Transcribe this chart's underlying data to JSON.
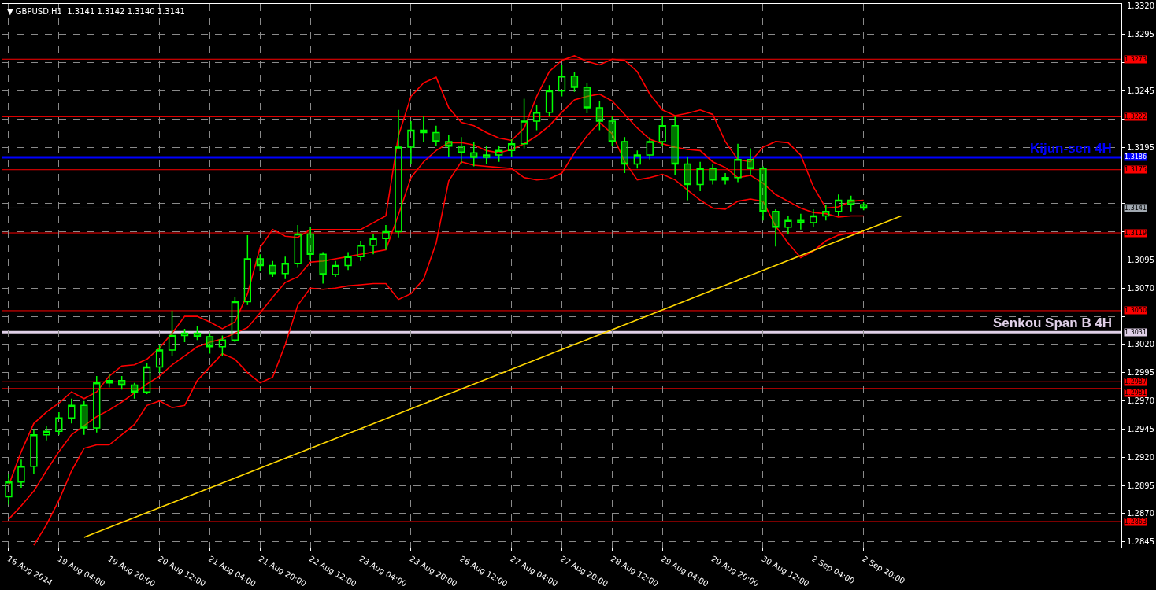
{
  "chart_data": {
    "type": "candlestick",
    "title": "▼ GBPUSD,H1  1.3141 1.3142 1.3140 1.3141",
    "categories": [
      "16 Aug 2024",
      null,
      null,
      null,
      "19 Aug 04:00",
      null,
      null,
      null,
      "19 Aug 20:00",
      null,
      null,
      null,
      "20 Aug 12:00",
      null,
      null,
      null,
      "21 Aug 04:00",
      null,
      null,
      null,
      "21 Aug 20:00",
      null,
      null,
      null,
      "22 Aug 12:00",
      null,
      null,
      null,
      "23 Aug 04:00",
      null,
      null,
      null,
      "23 Aug 20:00",
      null,
      null,
      null,
      "26 Aug 12:00",
      null,
      null,
      null,
      "27 Aug 04:00",
      null,
      null,
      null,
      "27 Aug 20:00",
      null,
      null,
      null,
      "28 Aug 12:00",
      null,
      null,
      null,
      "29 Aug 04:00",
      null,
      null,
      null,
      "29 Aug 20:00",
      null,
      null,
      null,
      "30 Aug 12:00",
      null,
      null,
      null,
      "2 Sep 04:00",
      null,
      null,
      null,
      "2 Sep 20:00",
      null,
      null,
      null,
      null,
      null,
      null,
      null,
      null,
      null,
      null,
      null,
      null,
      null,
      null,
      null,
      null,
      null,
      null,
      null,
      null
    ],
    "series": [
      {
        "color": "#00ff00",
        "ohlc": [
          [
            1.2885,
            1.2905,
            1.2878,
            1.2898
          ],
          [
            1.2898,
            1.2918,
            1.2893,
            1.2912
          ],
          [
            1.2912,
            1.2945,
            1.2905,
            1.294
          ],
          [
            1.294,
            1.2948,
            1.2935,
            1.2943
          ],
          [
            1.2943,
            1.296,
            1.294,
            1.2955
          ],
          [
            1.2955,
            1.2972,
            1.295,
            1.2966
          ],
          [
            1.2966,
            1.297,
            1.294,
            1.2946
          ],
          [
            1.2946,
            1.2992,
            1.2942,
            1.2986
          ],
          [
            1.2986,
            1.2994,
            1.2982,
            1.2988
          ],
          [
            1.2988,
            1.2992,
            1.298,
            1.2984
          ],
          [
            1.2984,
            1.2986,
            1.2972,
            1.2978
          ],
          [
            1.2978,
            1.3004,
            1.2976,
            1.3
          ],
          [
            1.3,
            1.302,
            1.2995,
            1.3015
          ],
          [
            1.3015,
            1.305,
            1.301,
            1.3028
          ],
          [
            1.3028,
            1.3034,
            1.3022,
            1.303
          ],
          [
            1.303,
            1.3036,
            1.3024,
            1.3027
          ],
          [
            1.3027,
            1.303,
            1.3012,
            1.3018
          ],
          [
            1.3018,
            1.3028,
            1.301,
            1.3024
          ],
          [
            1.3024,
            1.3062,
            1.3022,
            1.3058
          ],
          [
            1.3058,
            1.3117,
            1.3055,
            1.3096
          ],
          [
            1.3096,
            1.31,
            1.3085,
            1.309
          ],
          [
            1.309,
            1.3094,
            1.308,
            1.3083
          ],
          [
            1.3083,
            1.3098,
            1.3078,
            1.3092
          ],
          [
            1.3092,
            1.3126,
            1.3088,
            1.3118
          ],
          [
            1.3118,
            1.3124,
            1.3095,
            1.31
          ],
          [
            1.31,
            1.3102,
            1.3074,
            1.3082
          ],
          [
            1.3082,
            1.3094,
            1.308,
            1.309
          ],
          [
            1.309,
            1.3102,
            1.3086,
            1.3098
          ],
          [
            1.3098,
            1.3112,
            1.3094,
            1.3108
          ],
          [
            1.3108,
            1.3118,
            1.31,
            1.3114
          ],
          [
            1.3114,
            1.3126,
            1.3104,
            1.312
          ],
          [
            1.312,
            1.3228,
            1.3115,
            1.3195
          ],
          [
            1.3195,
            1.3218,
            1.318,
            1.321
          ],
          [
            1.321,
            1.3222,
            1.32,
            1.3208
          ],
          [
            1.3208,
            1.3214,
            1.3196,
            1.32
          ],
          [
            1.32,
            1.3206,
            1.3186,
            1.3196
          ],
          [
            1.3196,
            1.3204,
            1.318,
            1.319
          ],
          [
            1.319,
            1.32,
            1.3178,
            1.3186
          ],
          [
            1.3186,
            1.3196,
            1.318,
            1.3188
          ],
          [
            1.3188,
            1.3196,
            1.3182,
            1.3192
          ],
          [
            1.3192,
            1.3202,
            1.3186,
            1.3198
          ],
          [
            1.3198,
            1.3238,
            1.3194,
            1.3218
          ],
          [
            1.3218,
            1.3232,
            1.321,
            1.3226
          ],
          [
            1.3226,
            1.325,
            1.3222,
            1.3245
          ],
          [
            1.3245,
            1.3268,
            1.324,
            1.3258
          ],
          [
            1.3258,
            1.3262,
            1.3244,
            1.3248
          ],
          [
            1.3248,
            1.3252,
            1.3225,
            1.323
          ],
          [
            1.323,
            1.3236,
            1.321,
            1.3218
          ],
          [
            1.3218,
            1.3222,
            1.3196,
            1.32
          ],
          [
            1.32,
            1.3204,
            1.3172,
            1.318
          ],
          [
            1.318,
            1.3192,
            1.3176,
            1.3188
          ],
          [
            1.3188,
            1.3204,
            1.3184,
            1.32
          ],
          [
            1.32,
            1.3222,
            1.3196,
            1.3214
          ],
          [
            1.3214,
            1.3222,
            1.317,
            1.318
          ],
          [
            1.318,
            1.3186,
            1.3148,
            1.3162
          ],
          [
            1.3162,
            1.3182,
            1.3156,
            1.3176
          ],
          [
            1.3176,
            1.318,
            1.3162,
            1.3166
          ],
          [
            1.3166,
            1.3172,
            1.3162,
            1.3168
          ],
          [
            1.3168,
            1.3198,
            1.3164,
            1.3184
          ],
          [
            1.3184,
            1.3194,
            1.317,
            1.3176
          ],
          [
            1.3176,
            1.3178,
            1.313,
            1.3138
          ],
          [
            1.3138,
            1.314,
            1.3107,
            1.3124
          ],
          [
            1.3124,
            1.3134,
            1.3118,
            1.313
          ],
          [
            1.313,
            1.3136,
            1.3122,
            1.3128
          ],
          [
            1.3128,
            1.314,
            1.3124,
            1.3134
          ],
          [
            1.3134,
            1.3144,
            1.313,
            1.3138
          ],
          [
            1.3138,
            1.3153,
            1.3134,
            1.3148
          ],
          [
            1.3148,
            1.3152,
            1.3138,
            1.3144
          ],
          [
            1.3144,
            1.3146,
            1.3139,
            1.3141
          ],
          null,
          null,
          null,
          null,
          null,
          null,
          null,
          null,
          null,
          null,
          null,
          null,
          null,
          null,
          null,
          null,
          null,
          null,
          null,
          null
        ]
      },
      {
        "type": "line",
        "color": "#ff0000",
        "values": [
          1.2895,
          1.2925,
          1.295,
          1.296,
          1.2968,
          1.2978,
          1.2972,
          1.2978,
          1.2992,
          1.3001,
          1.3002,
          1.3007,
          1.3017,
          1.303,
          1.3045,
          1.3045,
          1.304,
          1.3034,
          1.304,
          1.3065,
          1.3106,
          1.3122,
          1.3116,
          1.3115,
          1.3122,
          1.3122,
          1.3122,
          1.3122,
          1.3122,
          1.3128,
          1.3134,
          1.3205,
          1.324,
          1.3252,
          1.3257,
          1.323,
          1.3217,
          1.3214,
          1.3208,
          1.3203,
          1.3201,
          1.3212,
          1.324,
          1.3262,
          1.3272,
          1.3276,
          1.3271,
          1.3268,
          1.3273,
          1.3272,
          1.3262,
          1.3242,
          1.3228,
          1.3223,
          1.3225,
          1.3228,
          1.3224,
          1.32,
          1.3184,
          1.3182,
          1.3195,
          1.32,
          1.3199,
          1.3188,
          1.316,
          1.3141,
          1.3142,
          1.3147,
          1.3148,
          null,
          null,
          null,
          null,
          null,
          null,
          null,
          null,
          null,
          null,
          null,
          null,
          null,
          null,
          null,
          null,
          null,
          null,
          null,
          null
        ]
      },
      {
        "type": "line",
        "color": "#ff0000",
        "values": [
          1.2865,
          1.2877,
          1.289,
          1.2908,
          1.2925,
          1.294,
          1.2948,
          1.2956,
          1.2962,
          1.2969,
          1.2977,
          1.2985,
          1.2992,
          1.3002,
          1.301,
          1.3018,
          1.3022,
          1.3025,
          1.303,
          1.3035,
          1.3048,
          1.3062,
          1.3075,
          1.308,
          1.3093,
          1.3094,
          1.3096,
          1.3098,
          1.31,
          1.3102,
          1.3104,
          1.3135,
          1.3168,
          1.3182,
          1.3192,
          1.3199,
          1.3199,
          1.3197,
          1.3192,
          1.319,
          1.3193,
          1.3198,
          1.3205,
          1.3214,
          1.3226,
          1.3237,
          1.324,
          1.3242,
          1.3236,
          1.3224,
          1.3212,
          1.3202,
          1.3198,
          1.3195,
          1.3193,
          1.3192,
          1.3182,
          1.3177,
          1.3168,
          1.317,
          1.3163,
          1.3153,
          1.3147,
          1.3141,
          1.3137,
          1.3136,
          1.3133,
          1.3134,
          1.3134,
          null,
          null,
          null,
          null,
          null,
          null,
          null,
          null,
          null,
          null,
          null,
          null,
          null,
          null,
          null,
          null,
          null,
          null,
          null,
          null
        ]
      },
      {
        "type": "line",
        "color": "#ff0000",
        "values": [
          null,
          null,
          1.2842,
          1.286,
          1.2882,
          1.2908,
          1.2928,
          1.2931,
          1.2931,
          1.294,
          1.2949,
          1.2966,
          1.297,
          1.2964,
          1.2966,
          1.2988,
          1.3,
          1.3012,
          1.3007,
          1.2995,
          1.2986,
          1.2991,
          1.302,
          1.3055,
          1.307,
          1.3069,
          1.307,
          1.3072,
          1.3073,
          1.3074,
          1.3074,
          1.306,
          1.3065,
          1.3078,
          1.311,
          1.3165,
          1.3182,
          1.3179,
          1.3178,
          1.3177,
          1.3176,
          1.3168,
          1.3166,
          1.3167,
          1.3172,
          1.319,
          1.3205,
          1.3217,
          1.3207,
          1.3182,
          1.3166,
          1.3168,
          1.3171,
          1.3166,
          1.3157,
          1.3148,
          1.3141,
          1.314,
          1.3147,
          1.3149,
          1.3147,
          1.3125,
          1.311,
          1.3097,
          1.3103,
          1.3112,
          1.3117,
          1.3119,
          1.3119,
          null,
          null,
          null,
          null,
          null,
          null,
          null,
          null,
          null,
          null,
          null,
          null,
          null,
          null,
          null,
          null,
          null,
          null,
          null,
          null
        ]
      },
      {
        "type": "line",
        "color": "#ffd700",
        "values": [
          null,
          null,
          null,
          null,
          null,
          null,
          1.2849,
          null,
          null,
          null,
          null,
          null,
          null,
          null,
          null,
          null,
          null,
          null,
          null,
          null,
          null,
          null,
          null,
          null,
          null,
          null,
          null,
          null,
          null,
          null,
          null,
          null,
          null,
          null,
          null,
          null,
          null,
          null,
          null,
          null,
          null,
          null,
          null,
          null,
          null,
          null,
          null,
          null,
          null,
          null,
          null,
          null,
          null,
          null,
          null,
          null,
          null,
          null,
          null,
          null,
          null,
          null,
          null,
          null,
          null,
          null,
          null,
          null,
          null,
          null,
          null,
          1.3134,
          null,
          null,
          null,
          null,
          null,
          null,
          null,
          null,
          null,
          null,
          null,
          null,
          null,
          null,
          null,
          null,
          null
        ]
      }
    ],
    "ylim": [
      1.284,
      1.3322
    ],
    "yticks": [
      {
        "value": 1.332,
        "label": "1.3320"
      },
      1.3295,
      {
        "value": 1.327,
        "label": null
      },
      1.3245,
      {
        "value": 1.322,
        "label": null
      },
      1.3195,
      {
        "value": 1.317,
        "label": null
      },
      {
        "value": 1.3145,
        "label": null
      },
      {
        "value": 1.312,
        "label": null
      },
      1.3095,
      {
        "value": 1.307,
        "label": "1.3070"
      },
      {
        "value": 1.3045,
        "label": null
      },
      {
        "value": 1.302,
        "label": "1.3020"
      },
      1.2995,
      {
        "value": 1.297,
        "label": "1.2970"
      },
      1.2945,
      {
        "value": 1.292,
        "label": "1.2920"
      },
      1.2895,
      {
        "value": 1.287,
        "label": "1.2870"
      },
      1.2845
    ],
    "ref_lines": [
      {
        "axis": "y",
        "value": 1.3273,
        "color": "#ff0000",
        "label": "1.3273"
      },
      {
        "axis": "y",
        "value": 1.3222,
        "color": "#ff0000",
        "label": "1.3222"
      },
      {
        "axis": "y",
        "value": 1.3186,
        "color": "#0000ff",
        "label": "1.3186"
      },
      {
        "axis": "y",
        "value": 1.3175,
        "color": "#ff0000",
        "label": "1.3175"
      },
      {
        "axis": "y",
        "value": 1.3141,
        "color": "#a0a8b0",
        "label": "1.3141"
      },
      {
        "axis": "y",
        "value": 1.3119,
        "color": "#ff0000",
        "label": "1.3119"
      },
      {
        "axis": "y",
        "value": 1.305,
        "color": "#ff0000",
        "label": "1.3050"
      },
      {
        "axis": "y",
        "value": 1.3031,
        "color": "#e0d0e8",
        "label": "1.3031"
      },
      {
        "axis": "y",
        "value": 1.2987,
        "color": "#ff0000",
        "label": "1.2987"
      },
      {
        "axis": "y",
        "value": 1.2981,
        "color": "#ff0000",
        "label": "1.2981"
      },
      {
        "axis": "y",
        "value": 1.2863,
        "color": "#ff0000",
        "label": "1.2863"
      }
    ],
    "annotations": [
      {
        "text": "Kijun-sen 4H",
        "y": 1.3186
      },
      {
        "text": "Senkou Span B 4H",
        "y": 1.3031
      }
    ],
    "grid": true
  }
}
